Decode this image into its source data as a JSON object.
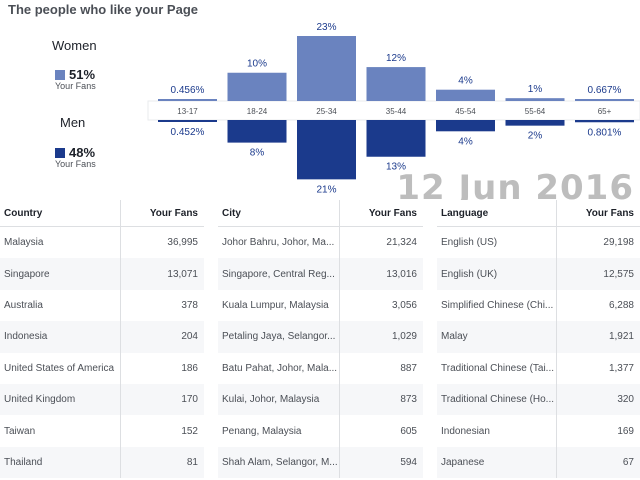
{
  "title": "The people who like your Page",
  "legend": {
    "women": {
      "label": "Women",
      "pct": "51%",
      "sub": "Your Fans",
      "color": "#6a83bf"
    },
    "men": {
      "label": "Men",
      "pct": "48%",
      "sub": "Your Fans",
      "color": "#1b3a8c"
    }
  },
  "watermark": "12 Jun 2016",
  "chart_data": {
    "type": "bar",
    "categories": [
      "13-17",
      "18-24",
      "25-34",
      "35-44",
      "45-54",
      "55-64",
      "65+"
    ],
    "series": [
      {
        "name": "Women",
        "values": [
          0.456,
          10,
          23,
          12,
          4,
          1,
          0.667
        ],
        "labels": [
          "0.456%",
          "10%",
          "23%",
          "12%",
          "4%",
          "1%",
          "0.667%"
        ]
      },
      {
        "name": "Men",
        "values": [
          0.452,
          8,
          21,
          13,
          4,
          2,
          0.801
        ],
        "labels": [
          "0.452%",
          "8%",
          "21%",
          "13%",
          "4%",
          "2%",
          "0.801%"
        ]
      }
    ]
  },
  "tables": [
    {
      "header": [
        "Country",
        "Your Fans"
      ],
      "rows": [
        [
          "Malaysia",
          "36,995"
        ],
        [
          "Singapore",
          "13,071"
        ],
        [
          "Australia",
          "378"
        ],
        [
          "Indonesia",
          "204"
        ],
        [
          "United States of America",
          "186"
        ],
        [
          "United Kingdom",
          "170"
        ],
        [
          "Taiwan",
          "152"
        ],
        [
          "Thailand",
          "81"
        ]
      ]
    },
    {
      "header": [
        "City",
        "Your Fans"
      ],
      "rows": [
        [
          "Johor Bahru, Johor, Ma...",
          "21,324"
        ],
        [
          "Singapore, Central Reg...",
          "13,016"
        ],
        [
          "Kuala Lumpur, Malaysia",
          "3,056"
        ],
        [
          "Petaling Jaya, Selangor...",
          "1,029"
        ],
        [
          "Batu Pahat, Johor, Mala...",
          "887"
        ],
        [
          "Kulai, Johor, Malaysia",
          "873"
        ],
        [
          "Penang, Malaysia",
          "605"
        ],
        [
          "Shah Alam, Selangor, M...",
          "594"
        ]
      ]
    },
    {
      "header": [
        "Language",
        "Your Fans"
      ],
      "rows": [
        [
          "English (US)",
          "29,198"
        ],
        [
          "English (UK)",
          "12,575"
        ],
        [
          "Simplified Chinese (Chi...",
          "6,288"
        ],
        [
          "Malay",
          "1,921"
        ],
        [
          "Traditional Chinese (Tai...",
          "1,377"
        ],
        [
          "Traditional Chinese (Ho...",
          "320"
        ],
        [
          "Indonesian",
          "169"
        ],
        [
          "Japanese",
          "67"
        ]
      ]
    }
  ]
}
